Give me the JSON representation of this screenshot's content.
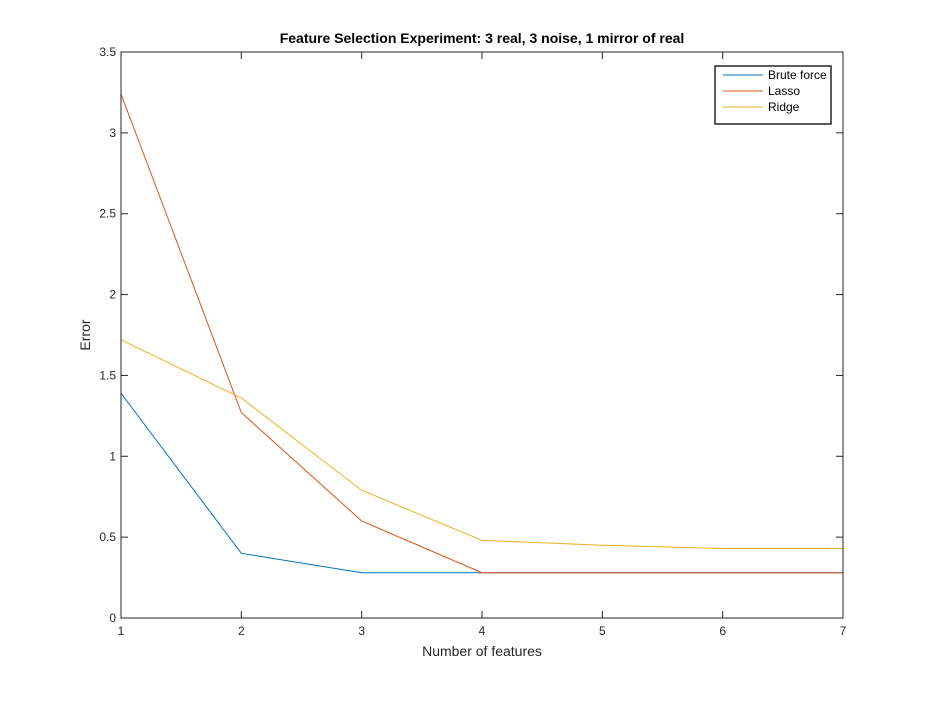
{
  "chart_data": {
    "type": "line",
    "title": "Feature Selection Experiment: 3 real, 3 noise, 1 mirror of real",
    "xlabel": "Number of features",
    "ylabel": "Error",
    "x": [
      1,
      2,
      3,
      4,
      5,
      6,
      7
    ],
    "xlim": [
      1,
      7
    ],
    "ylim": [
      0,
      3.5
    ],
    "xticks": [
      1,
      2,
      3,
      4,
      5,
      6,
      7
    ],
    "yticks": [
      0,
      0.5,
      1,
      1.5,
      2,
      2.5,
      3,
      3.5
    ],
    "grid": false,
    "legend_position": "top-right",
    "series": [
      {
        "name": "Brute force",
        "color": "#0072BD",
        "values": [
          1.39,
          0.4,
          0.28,
          0.28,
          0.28,
          0.28,
          0.28
        ]
      },
      {
        "name": "Lasso",
        "color": "#D95319",
        "values": [
          3.24,
          1.27,
          0.6,
          0.28,
          0.28,
          0.28,
          0.28
        ]
      },
      {
        "name": "Ridge",
        "color": "#EDB120",
        "values": [
          1.72,
          1.36,
          0.79,
          0.48,
          0.45,
          0.43,
          0.43
        ]
      }
    ]
  }
}
